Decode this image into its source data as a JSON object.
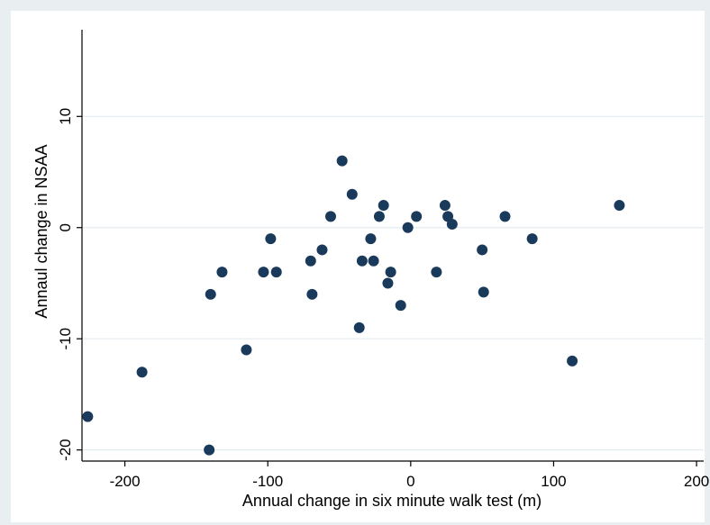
{
  "chart_data": {
    "type": "scatter",
    "title": "",
    "xlabel": "Annual change in six minute walk test (m)",
    "ylabel": "Annaul change in NSAA",
    "xlim": [
      -230,
      205
    ],
    "ylim": [
      -21,
      17.8
    ],
    "x_ticks": [
      -200,
      -100,
      0,
      100,
      200
    ],
    "x_tick_labels": [
      "-200",
      "-100",
      "0",
      "100",
      "200"
    ],
    "y_ticks": [
      -20,
      -10,
      0,
      10
    ],
    "y_tick_labels": [
      "-20",
      "-10",
      "0",
      "10"
    ],
    "grid": "horizontal",
    "marker_color": "#1a3a5c",
    "gridline_color": "#e4ebef",
    "points": [
      {
        "x": -226,
        "y": -17
      },
      {
        "x": -188,
        "y": -13
      },
      {
        "x": -141,
        "y": -20
      },
      {
        "x": -140,
        "y": -6
      },
      {
        "x": -132,
        "y": -4
      },
      {
        "x": -115,
        "y": -11
      },
      {
        "x": -103,
        "y": -4
      },
      {
        "x": -98,
        "y": -1
      },
      {
        "x": -94,
        "y": -4
      },
      {
        "x": -70,
        "y": -3
      },
      {
        "x": -69,
        "y": -6
      },
      {
        "x": -62,
        "y": -2
      },
      {
        "x": -56,
        "y": 1
      },
      {
        "x": -48,
        "y": 6
      },
      {
        "x": -41,
        "y": 3
      },
      {
        "x": -36,
        "y": -9
      },
      {
        "x": -34,
        "y": -3
      },
      {
        "x": -28,
        "y": -1
      },
      {
        "x": -26,
        "y": -3
      },
      {
        "x": -22,
        "y": 1
      },
      {
        "x": -19,
        "y": 2
      },
      {
        "x": -16,
        "y": -5
      },
      {
        "x": -14,
        "y": -4
      },
      {
        "x": -7,
        "y": -7
      },
      {
        "x": -2,
        "y": 0
      },
      {
        "x": 4,
        "y": 1
      },
      {
        "x": 18,
        "y": -4
      },
      {
        "x": 24,
        "y": 2
      },
      {
        "x": 26,
        "y": 1
      },
      {
        "x": 29,
        "y": 0.3
      },
      {
        "x": 50,
        "y": -2
      },
      {
        "x": 51,
        "y": -5.8
      },
      {
        "x": 66,
        "y": 1
      },
      {
        "x": 85,
        "y": -1
      },
      {
        "x": 113,
        "y": -12
      },
      {
        "x": 146,
        "y": 2
      }
    ]
  }
}
